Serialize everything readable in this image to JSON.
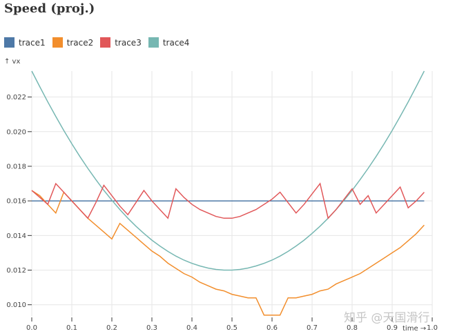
{
  "chart_data": {
    "type": "line",
    "title": "Speed (proj.)",
    "xlabel": "time →",
    "ylabel": "↑ vx",
    "xlim": [
      0,
      1.0
    ],
    "ylim": [
      0.00935,
      0.0235
    ],
    "grid": true,
    "legend_placement": "top-left",
    "xticks": [
      "0.0",
      "0.1",
      "0.2",
      "0.3",
      "0.4",
      "0.5",
      "0.6",
      "0.7",
      "0.8",
      "0.9",
      "1.0"
    ],
    "xtick_values": [
      0,
      0.1,
      0.2,
      0.3,
      0.4,
      0.5,
      0.6,
      0.7,
      0.8,
      0.9,
      1.0
    ],
    "yticks": [
      "0.010",
      "0.012",
      "0.014",
      "0.016",
      "0.018",
      "0.020",
      "0.022"
    ],
    "ytick_values": [
      0.01,
      0.012,
      0.014,
      0.016,
      0.018,
      0.02,
      0.022
    ],
    "x": [
      0,
      0.02,
      0.04,
      0.06,
      0.08,
      0.1,
      0.12,
      0.14,
      0.16,
      0.18,
      0.2,
      0.22,
      0.24,
      0.26,
      0.28,
      0.3,
      0.32,
      0.34,
      0.36,
      0.38,
      0.4,
      0.42,
      0.44,
      0.46,
      0.48,
      0.5,
      0.52,
      0.54,
      0.56,
      0.58,
      0.6,
      0.62,
      0.64,
      0.66,
      0.68,
      0.7,
      0.72,
      0.74,
      0.76,
      0.78,
      0.8,
      0.82,
      0.84,
      0.86,
      0.88,
      0.9,
      0.92,
      0.94,
      0.96,
      0.98
    ],
    "series": [
      {
        "name": "trace1",
        "color": "#4e79a7",
        "values": [
          0.016,
          0.016,
          0.016,
          0.016,
          0.016,
          0.016,
          0.016,
          0.016,
          0.016,
          0.016,
          0.016,
          0.016,
          0.016,
          0.016,
          0.016,
          0.016,
          0.016,
          0.016,
          0.016,
          0.016,
          0.016,
          0.016,
          0.016,
          0.016,
          0.016,
          0.016,
          0.016,
          0.016,
          0.016,
          0.016,
          0.016,
          0.016,
          0.016,
          0.016,
          0.016,
          0.016,
          0.016,
          0.016,
          0.016,
          0.016,
          0.016,
          0.016,
          0.016,
          0.016,
          0.016,
          0.016,
          0.016,
          0.016,
          0.016,
          0.016
        ]
      },
      {
        "name": "trace2",
        "color": "#f28e2c",
        "values": [
          0.0166,
          0.0163,
          0.0158,
          0.0153,
          0.0165,
          0.016,
          0.0155,
          0.015,
          0.0146,
          0.0142,
          0.0138,
          0.0147,
          0.0143,
          0.0139,
          0.0135,
          0.0131,
          0.0128,
          0.0124,
          0.0121,
          0.0118,
          0.0116,
          0.0113,
          0.0111,
          0.0109,
          0.0108,
          0.0106,
          0.0105,
          0.0104,
          0.0104,
          0.0094,
          0.0094,
          0.0094,
          0.0104,
          0.0104,
          0.0105,
          0.0106,
          0.0108,
          0.0109,
          0.0112,
          0.0114,
          0.0116,
          0.0118,
          0.0121,
          0.0124,
          0.0127,
          0.013,
          0.0133,
          0.0137,
          0.0141,
          0.0146
        ]
      },
      {
        "name": "trace3",
        "color": "#e15759",
        "values": [
          0.0166,
          0.0162,
          0.0158,
          0.017,
          0.0165,
          0.016,
          0.0155,
          0.015,
          0.0159,
          0.0169,
          0.0163,
          0.0157,
          0.0152,
          0.0159,
          0.0166,
          0.016,
          0.0155,
          0.015,
          0.0167,
          0.0162,
          0.0158,
          0.0155,
          0.0153,
          0.0151,
          0.015,
          0.015,
          0.0151,
          0.0153,
          0.0155,
          0.0158,
          0.0161,
          0.0165,
          0.0159,
          0.0153,
          0.0158,
          0.0164,
          0.017,
          0.015,
          0.0155,
          0.0161,
          0.0167,
          0.0158,
          0.0163,
          0.0153,
          0.0158,
          0.0163,
          0.0168,
          0.0156,
          0.016,
          0.0165
        ]
      },
      {
        "name": "trace4",
        "color": "#76b7b2",
        "values": [
          0.02353,
          0.0226,
          0.02172,
          0.02088,
          0.02007,
          0.0193,
          0.01857,
          0.01788,
          0.01723,
          0.01661,
          0.01604,
          0.0155,
          0.015,
          0.01454,
          0.01412,
          0.01373,
          0.01339,
          0.01308,
          0.01281,
          0.01258,
          0.01239,
          0.01224,
          0.01212,
          0.01204,
          0.012,
          0.012,
          0.01204,
          0.01212,
          0.01224,
          0.01239,
          0.01258,
          0.01281,
          0.01308,
          0.01339,
          0.01373,
          0.01412,
          0.01454,
          0.015,
          0.0155,
          0.01604,
          0.01661,
          0.01723,
          0.01788,
          0.01857,
          0.0193,
          0.02007,
          0.02088,
          0.02172,
          0.0226,
          0.02353
        ]
      }
    ]
  },
  "watermark": "知乎 @天国滑行"
}
